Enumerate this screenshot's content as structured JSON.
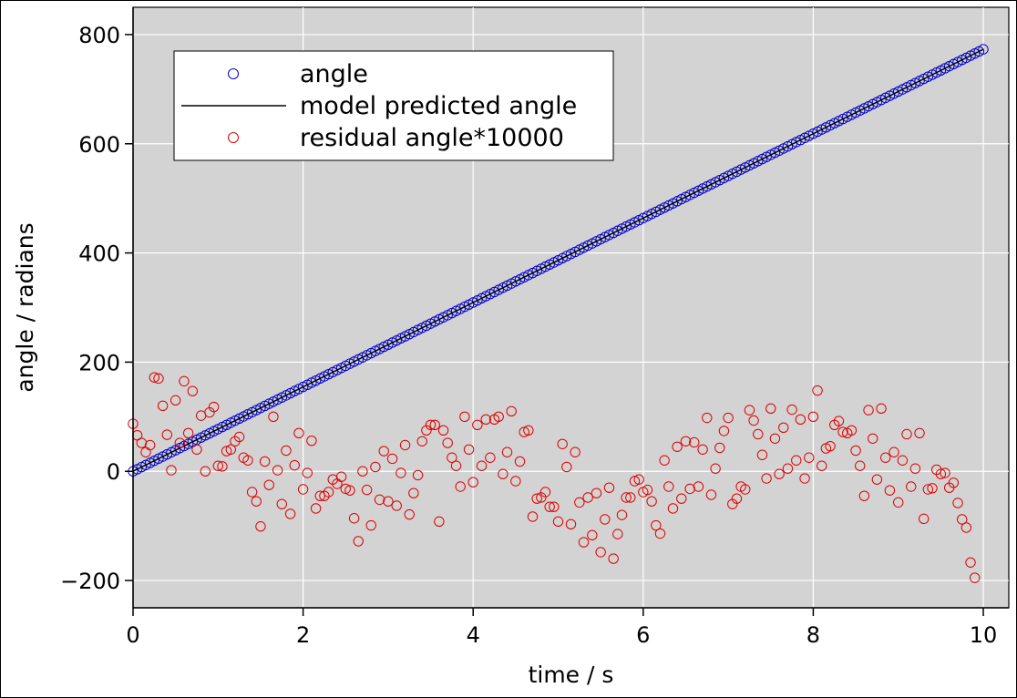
{
  "chart_data": {
    "type": "scatter",
    "xlabel": "time / s",
    "ylabel": "angle / radians",
    "xlim": [
      0,
      10.3
    ],
    "ylim": [
      -250,
      850
    ],
    "xticks": [
      0,
      2,
      4,
      6,
      8,
      10
    ],
    "xtick_labels": [
      "0",
      "2",
      "4",
      "6",
      "8",
      "10"
    ],
    "yticks": [
      -200,
      0,
      200,
      400,
      600,
      800
    ],
    "ytick_labels": [
      "−200",
      "0",
      "200",
      "400",
      "600",
      "800"
    ],
    "grid": true,
    "legend_position": "top-left",
    "background_color": "#d3d3d3",
    "series": [
      {
        "name": "angle",
        "style": "markers",
        "marker": "open-circle",
        "color": "#0000cc",
        "x_start": 0,
        "x_end": 10,
        "x_step": 0.05,
        "y_values": [
          0,
          3.86,
          7.73,
          11.6,
          15.46,
          19.33,
          23.19,
          27.06,
          30.92,
          34.79,
          38.65,
          42.52,
          46.38,
          50.25,
          54.11,
          57.98,
          61.84,
          65.71,
          69.57,
          73.44,
          77.3,
          81.17,
          85.03,
          88.9,
          92.76,
          96.63,
          100.49,
          104.36,
          108.22,
          112.09,
          115.95,
          119.82,
          123.68,
          127.55,
          131.41,
          135.28,
          139.14,
          143.01,
          146.87,
          150.74,
          154.6,
          158.47,
          162.33,
          166.2,
          170.06,
          173.93,
          177.79,
          181.66,
          185.52,
          189.39,
          193.25,
          197.12,
          200.98,
          204.85,
          208.71,
          212.58,
          216.44,
          220.31,
          224.17,
          228.04,
          231.9,
          235.77,
          239.63,
          243.5,
          247.36,
          251.23,
          255.09,
          258.96,
          262.82,
          266.69,
          270.55,
          274.42,
          278.28,
          282.15,
          286.01,
          289.88,
          293.74,
          297.61,
          301.47,
          305.34,
          309.2,
          313.07,
          316.93,
          320.8,
          324.66,
          328.53,
          332.39,
          336.26,
          340.12,
          343.99,
          347.85,
          351.72,
          355.58,
          359.45,
          363.31,
          367.18,
          371.04,
          374.91,
          378.77,
          382.64,
          386.5,
          390.37,
          394.23,
          398.1,
          401.96,
          405.83,
          409.69,
          413.56,
          417.42,
          421.29,
          425.15,
          429.02,
          432.88,
          436.75,
          440.61,
          444.48,
          448.34,
          452.21,
          456.07,
          459.94,
          463.8,
          467.67,
          471.53,
          475.4,
          479.26,
          483.13,
          486.99,
          490.86,
          494.72,
          498.59,
          502.45,
          506.32,
          510.18,
          514.05,
          517.91,
          521.78,
          525.64,
          529.51,
          533.37,
          537.24,
          541.1,
          544.97,
          548.83,
          552.7,
          556.56,
          560.43,
          564.29,
          568.16,
          572.02,
          575.89,
          579.75,
          583.62,
          587.48,
          591.35,
          595.21,
          599.08,
          602.94,
          606.81,
          610.67,
          614.54,
          618.4,
          622.27,
          626.13,
          630,
          633.86,
          637.73,
          641.59,
          645.46,
          649.32,
          653.19,
          657.05,
          660.92,
          664.78,
          668.65,
          672.51,
          676.38,
          680.24,
          684.11,
          687.97,
          691.84,
          695.7,
          699.57,
          703.43,
          707.3,
          711.16,
          715.03,
          718.89,
          722.76,
          726.62,
          730.49,
          734.35,
          738.22,
          742.08,
          745.95,
          749.81,
          753.68,
          757.54,
          761.41,
          765.27,
          769.14,
          773
        ]
      },
      {
        "name": "model predicted angle",
        "style": "line",
        "color": "#000000",
        "x": [
          0,
          10
        ],
        "y": [
          0,
          773
        ]
      },
      {
        "name": "residual angle*10000",
        "style": "markers",
        "marker": "open-circle",
        "color": "#e00000",
        "x_start": 0,
        "x_end": 10,
        "x_step": 0.05,
        "y_values": [
          87,
          66,
          52,
          35,
          48,
          172,
          170,
          120,
          67,
          2,
          130,
          52,
          165,
          70,
          147,
          40,
          102,
          0,
          108,
          118,
          10,
          9,
          37,
          40,
          55,
          63,
          25,
          20,
          -38,
          -55,
          -101,
          18,
          -25,
          100,
          2,
          -60,
          38,
          -78,
          11,
          70,
          -33,
          -3,
          56,
          -68,
          -45,
          -45,
          -38,
          -15,
          -23,
          -10,
          -32,
          -35,
          -86,
          -128,
          0,
          -34,
          -99,
          8,
          -52,
          37,
          -55,
          23,
          -63,
          -3,
          48,
          -79,
          -40,
          -7,
          55,
          75,
          85,
          85,
          -92,
          75,
          52,
          25,
          10,
          -28,
          100,
          40,
          -20,
          85,
          10,
          95,
          25,
          95,
          100,
          -5,
          35,
          110,
          -18,
          18,
          72,
          75,
          -83,
          -50,
          -48,
          -38,
          -65,
          -65,
          -92,
          50,
          8,
          -97,
          35,
          -57,
          -130,
          -48,
          -117,
          -40,
          -148,
          -88,
          -30,
          -160,
          -115,
          -80,
          -48,
          -48,
          -18,
          -15,
          -38,
          -34,
          -55,
          -99,
          -114,
          20,
          -28,
          -68,
          45,
          -50,
          55,
          -32,
          53,
          -28,
          40,
          98,
          -43,
          5,
          43,
          74,
          98,
          -60,
          -50,
          -28,
          -33,
          112,
          93,
          68,
          30,
          -13,
          115,
          60,
          -5,
          80,
          5,
          113,
          20,
          95,
          -13,
          25,
          100,
          148,
          10,
          42,
          46,
          85,
          92,
          72,
          70,
          75,
          38,
          10,
          -45,
          112,
          60,
          -15,
          115,
          25,
          -35,
          35,
          -57,
          20,
          68,
          -28,
          5,
          70,
          -87,
          -33,
          -31,
          3,
          -5,
          -3,
          -30,
          -21,
          -58,
          -88,
          -103,
          -167,
          -195
        ]
      }
    ],
    "legend": [
      {
        "label": "angle",
        "symbol": "blue-circle-marker"
      },
      {
        "label": "model predicted angle",
        "symbol": "black-line"
      },
      {
        "label": "residual angle*10000",
        "symbol": "red-circle-marker"
      }
    ]
  }
}
